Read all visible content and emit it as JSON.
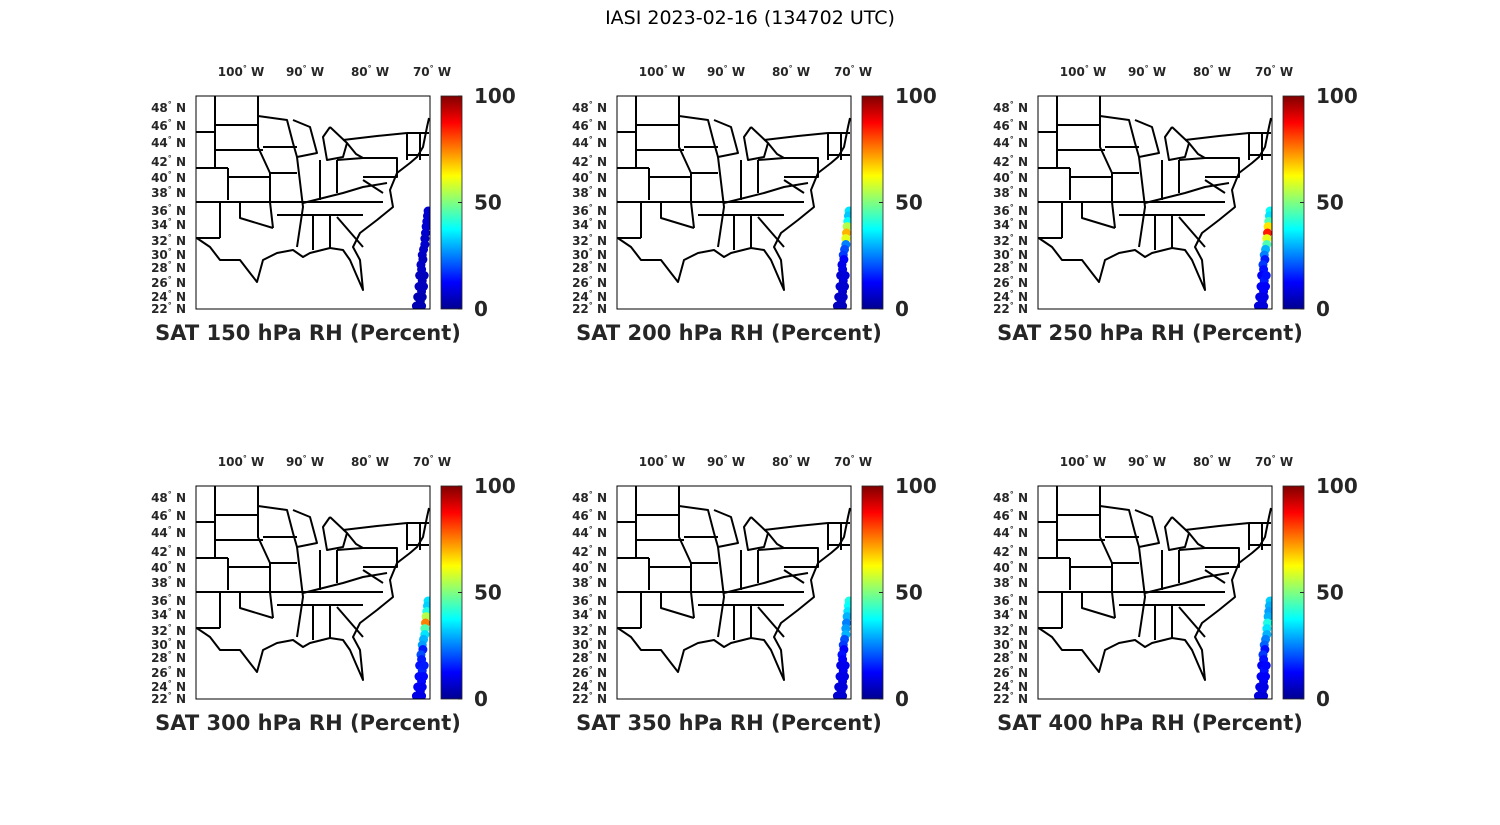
{
  "title": "IASI 2023-02-16 (134702 UTC)",
  "chart_data": {
    "type": "scatter",
    "title": "IASI 2023-02-16 (134702 UTC)",
    "lon_ticks": [
      "100",
      "90",
      "80",
      "70"
    ],
    "lon_suffix": "W",
    "lat_ticks": [
      "48",
      "46",
      "44",
      "42",
      "40",
      "38",
      "36",
      "34",
      "32",
      "30",
      "28",
      "26",
      "24",
      "22"
    ],
    "lat_suffix": "N",
    "colorbar": {
      "ticks": [
        "0",
        "50",
        "100"
      ],
      "range": [
        0,
        100
      ],
      "colormap": "jet"
    },
    "points": [
      [
        36,
        -70.6
      ],
      [
        35.3,
        -70.7
      ],
      [
        34.5,
        -70.8
      ],
      [
        33.8,
        -70.9
      ],
      [
        33,
        -71.0
      ],
      [
        32.3,
        -71.1
      ],
      [
        31.5,
        -71.1
      ],
      [
        30.8,
        -71.3
      ],
      [
        30,
        -71.5
      ],
      [
        29.3,
        -71.4
      ],
      [
        28.5,
        -71.7
      ],
      [
        27.8,
        -71.6
      ],
      [
        27,
        -71.9
      ],
      [
        26.3,
        -71.5
      ],
      [
        25.5,
        -72.0
      ],
      [
        24.8,
        -71.6
      ],
      [
        24,
        -72.2
      ],
      [
        23.3,
        -71.8
      ],
      [
        22.5,
        -72.4
      ],
      [
        22.2,
        -71.9
      ],
      [
        27,
        -71.2
      ],
      [
        25.5,
        -71.3
      ],
      [
        24,
        -71.5
      ],
      [
        22.5,
        -71.6
      ]
    ],
    "panels": [
      {
        "title": "SAT 150 hPa RH (Percent)",
        "values": [
          8,
          8,
          8,
          8,
          8,
          7,
          8,
          7,
          7,
          6,
          7,
          7,
          6,
          6,
          6,
          6,
          5,
          5,
          5,
          5,
          6,
          6,
          5,
          5
        ]
      },
      {
        "title": "SAT 200 hPa RH (Percent)",
        "values": [
          35,
          32,
          38,
          55,
          70,
          60,
          25,
          20,
          18,
          12,
          10,
          10,
          8,
          9,
          8,
          8,
          7,
          7,
          6,
          6,
          9,
          8,
          7,
          6
        ]
      },
      {
        "title": "SAT 250 hPa RH (Percent)",
        "values": [
          38,
          35,
          45,
          65,
          85,
          60,
          45,
          30,
          25,
          15,
          18,
          14,
          12,
          15,
          12,
          12,
          10,
          10,
          9,
          8,
          14,
          12,
          10,
          9
        ]
      },
      {
        "title": "SAT 300 hPa RH (Percent)",
        "values": [
          35,
          33,
          40,
          55,
          75,
          45,
          35,
          30,
          28,
          15,
          20,
          15,
          14,
          16,
          13,
          13,
          12,
          11,
          10,
          10,
          15,
          13,
          11,
          10
        ]
      },
      {
        "title": "SAT 350 hPa RH (Percent)",
        "values": [
          40,
          38,
          35,
          30,
          25,
          28,
          30,
          20,
          18,
          12,
          14,
          12,
          10,
          11,
          10,
          10,
          9,
          9,
          8,
          8,
          11,
          10,
          9,
          8
        ]
      },
      {
        "title": "SAT 400 hPa RH (Percent)",
        "values": [
          33,
          30,
          28,
          30,
          40,
          35,
          30,
          25,
          22,
          14,
          18,
          14,
          12,
          14,
          12,
          11,
          10,
          10,
          9,
          9,
          13,
          12,
          10,
          9
        ]
      }
    ]
  }
}
